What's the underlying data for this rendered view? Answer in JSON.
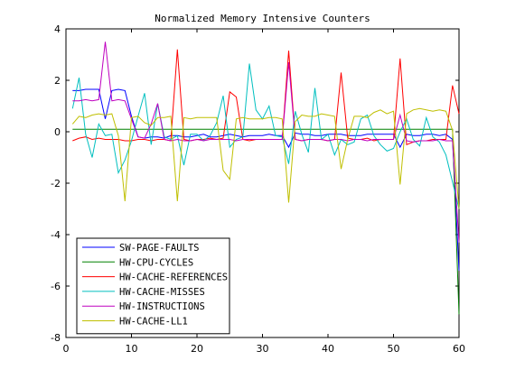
{
  "chart_data": {
    "type": "line",
    "title": "Normalized Memory Intensive Counters",
    "xlim": [
      0,
      60
    ],
    "ylim": [
      -8,
      4
    ],
    "xticks": [
      0,
      10,
      20,
      30,
      40,
      50,
      60
    ],
    "yticks": [
      -8,
      -6,
      -4,
      -2,
      0,
      2,
      4
    ],
    "xticklabels": [
      "0",
      "10",
      "20",
      "30",
      "40",
      "50",
      "60"
    ],
    "yticklabels": [
      "-8",
      "-6",
      "-4",
      "-2",
      "0",
      "2",
      "4"
    ],
    "legend_position": "bottom-left",
    "grid": false,
    "x": [
      1,
      2,
      3,
      4,
      5,
      6,
      7,
      8,
      9,
      10,
      11,
      12,
      13,
      14,
      15,
      16,
      17,
      18,
      19,
      20,
      21,
      22,
      23,
      24,
      25,
      26,
      27,
      28,
      29,
      30,
      31,
      32,
      33,
      34,
      35,
      36,
      37,
      38,
      39,
      40,
      41,
      42,
      43,
      44,
      45,
      46,
      47,
      48,
      49,
      50,
      51,
      52,
      53,
      54,
      55,
      56,
      57,
      58,
      59,
      60
    ],
    "series": [
      {
        "name": "SW-PAGE-FAULTS",
        "color": "#0000ff",
        "values": [
          1.6,
          1.6,
          1.65,
          1.65,
          1.65,
          0.5,
          1.6,
          1.65,
          1.6,
          0.6,
          -0.2,
          -0.25,
          -0.2,
          -0.2,
          -0.25,
          -0.15,
          -0.15,
          -0.2,
          -0.2,
          -0.15,
          -0.1,
          -0.2,
          -0.2,
          -0.15,
          -0.1,
          -0.15,
          -0.2,
          -0.15,
          -0.15,
          -0.15,
          -0.1,
          -0.15,
          -0.15,
          -0.6,
          -0.05,
          -0.1,
          -0.1,
          -0.15,
          -0.15,
          -0.1,
          -0.1,
          -0.1,
          -0.15,
          -0.15,
          -0.15,
          -0.1,
          -0.1,
          -0.1,
          -0.1,
          -0.1,
          -0.6,
          -0.1,
          -0.15,
          -0.15,
          -0.1,
          -0.1,
          -0.15,
          -0.1,
          -0.3,
          -5.4
        ]
      },
      {
        "name": "HW-CPU-CYCLES",
        "color": "#008000",
        "values": [
          0.1,
          0.1,
          0.1,
          0.1,
          0.1,
          0.1,
          0.1,
          0.1,
          0.1,
          0.1,
          0.1,
          0.1,
          0.1,
          0.1,
          0.1,
          0.1,
          0.1,
          0.1,
          0.1,
          0.1,
          0.1,
          0.1,
          0.1,
          0.1,
          0.1,
          0.1,
          0.1,
          0.1,
          0.1,
          0.1,
          0.1,
          0.1,
          0.1,
          0.1,
          0.1,
          0.1,
          0.1,
          0.1,
          0.1,
          0.1,
          0.1,
          0.1,
          0.1,
          0.1,
          0.1,
          0.1,
          0.1,
          0.1,
          0.1,
          0.1,
          0.1,
          0.1,
          0.1,
          0.1,
          0.1,
          0.1,
          0.1,
          0.1,
          0.1,
          -7.1
        ]
      },
      {
        "name": "HW-CACHE-REFERENCES",
        "color": "#ff0000",
        "values": [
          -0.35,
          -0.25,
          -0.2,
          -0.3,
          -0.25,
          -0.3,
          -0.3,
          -0.3,
          -0.35,
          -0.35,
          -0.3,
          -0.3,
          -0.35,
          -0.3,
          -0.3,
          -0.35,
          3.2,
          -0.3,
          -0.35,
          -0.3,
          -0.3,
          -0.25,
          -0.3,
          -0.25,
          1.55,
          1.35,
          -0.3,
          -0.35,
          -0.3,
          -0.3,
          -0.3,
          -0.3,
          -0.3,
          3.15,
          -0.3,
          -0.35,
          -0.3,
          -0.3,
          -0.3,
          -0.35,
          -0.3,
          2.3,
          -0.25,
          -0.3,
          -0.3,
          -0.25,
          -0.35,
          -0.3,
          -0.3,
          -0.3,
          2.85,
          -0.5,
          -0.4,
          -0.35,
          -0.35,
          -0.3,
          -0.3,
          -0.3,
          1.8,
          0.7
        ]
      },
      {
        "name": "HW-CACHE-MISSES",
        "color": "#00bfbf",
        "values": [
          0.9,
          2.1,
          -0.1,
          -1.0,
          0.3,
          -0.15,
          -0.1,
          -1.6,
          -1.1,
          -0.35,
          0.6,
          1.5,
          -0.5,
          1.1,
          -0.2,
          -0.3,
          -0.15,
          -1.3,
          -0.1,
          -0.1,
          -0.35,
          -0.15,
          0.35,
          1.4,
          -0.6,
          -0.3,
          -0.2,
          2.65,
          0.85,
          0.5,
          1.0,
          -0.15,
          -0.2,
          -1.25,
          0.8,
          -0.1,
          -0.8,
          1.7,
          -0.3,
          -0.1,
          -0.9,
          -0.3,
          -0.5,
          -0.4,
          0.5,
          0.65,
          -0.15,
          -0.5,
          -0.75,
          -0.65,
          0.0,
          0.5,
          -0.3,
          -0.55,
          0.55,
          -0.2,
          -0.4,
          -0.9,
          -1.95,
          -3.0
        ]
      },
      {
        "name": "HW-INSTRUCTIONS",
        "color": "#bf00bf",
        "values": [
          1.2,
          1.2,
          1.25,
          1.2,
          1.25,
          3.5,
          1.2,
          1.25,
          1.2,
          0.5,
          -0.2,
          -0.25,
          0.3,
          1.1,
          -0.3,
          -0.35,
          -0.3,
          -0.35,
          -0.35,
          -0.3,
          -0.35,
          -0.3,
          -0.3,
          -0.3,
          -0.3,
          -0.35,
          -0.3,
          -0.3,
          -0.3,
          -0.3,
          -0.3,
          -0.3,
          -0.3,
          2.7,
          -0.3,
          -0.35,
          -0.3,
          -0.3,
          -0.3,
          -0.35,
          -0.3,
          -0.3,
          -0.35,
          -0.3,
          -0.3,
          -0.35,
          -0.3,
          -0.3,
          -0.3,
          -0.3,
          0.65,
          -0.35,
          -0.4,
          -0.35,
          -0.35,
          -0.35,
          -0.3,
          -0.35,
          -0.35,
          -4.3
        ]
      },
      {
        "name": "HW-CACHE-LL1",
        "color": "#bfbf00",
        "values": [
          0.3,
          0.6,
          0.55,
          0.65,
          0.7,
          0.65,
          0.7,
          -0.15,
          -2.7,
          0.55,
          0.6,
          0.35,
          0.25,
          0.55,
          0.55,
          0.6,
          -2.7,
          0.55,
          0.5,
          0.55,
          0.55,
          0.55,
          0.55,
          -1.5,
          -1.85,
          0.5,
          0.55,
          0.5,
          0.5,
          0.5,
          0.55,
          0.55,
          0.5,
          -2.75,
          0.4,
          0.65,
          0.6,
          0.6,
          0.7,
          0.65,
          0.6,
          -1.45,
          -0.3,
          0.6,
          0.6,
          0.55,
          0.75,
          0.85,
          0.7,
          0.8,
          -2.05,
          0.7,
          0.85,
          0.9,
          0.85,
          0.8,
          0.85,
          0.8,
          0.05,
          -3.0
        ]
      }
    ]
  }
}
